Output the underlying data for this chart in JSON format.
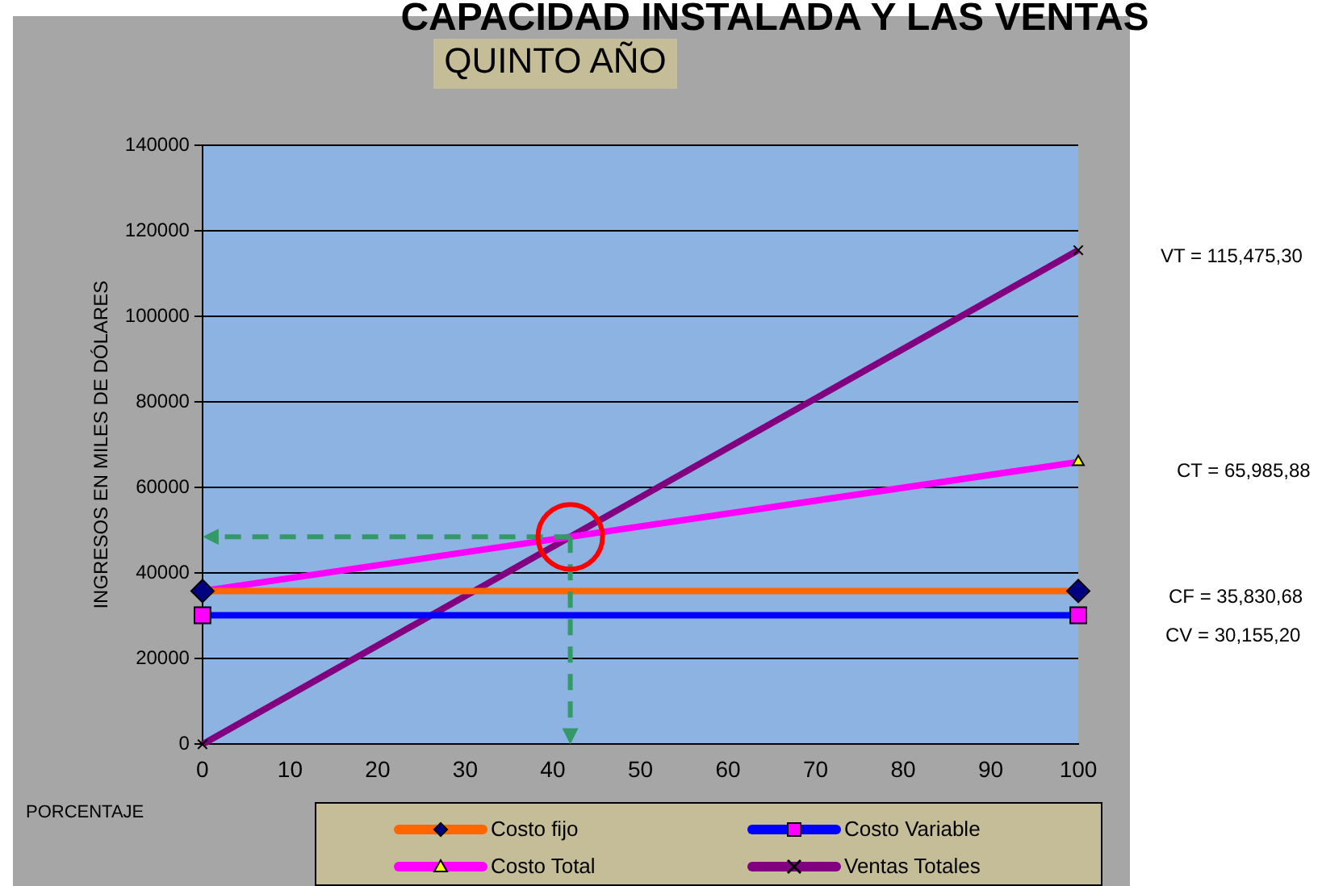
{
  "chart_data": {
    "type": "line",
    "title": "CAPACIDAD INSTALADA Y LAS VENTAS",
    "subtitle": "QUINTO AÑO",
    "xlabel": "PORCENTAJE",
    "ylabel": "INGRESOS EN MILES DE DÓLARES",
    "xlim": [
      0,
      100
    ],
    "xticks": [
      0,
      10,
      20,
      30,
      40,
      50,
      60,
      70,
      80,
      90,
      100
    ],
    "ylim": [
      0,
      140000
    ],
    "yticks": [
      0,
      20000,
      40000,
      60000,
      80000,
      100000,
      120000,
      140000
    ],
    "grid": "y",
    "legend": "bottom",
    "series": [
      {
        "name": "Costo fijo",
        "color": "#ff6600",
        "marker": "diamond",
        "values": [
          35830.68,
          35830.68
        ]
      },
      {
        "name": "Costo Variable",
        "color": "#0000ff",
        "marker": "square",
        "values": [
          30155.2,
          30155.2
        ]
      },
      {
        "name": "Costo Total",
        "color": "#ff00ff",
        "marker": "triangle",
        "values": [
          35830.68,
          65985.88
        ]
      },
      {
        "name": "Ventas Totales",
        "color": "#800080",
        "marker": "cross",
        "values": [
          0,
          115475.3
        ]
      }
    ],
    "x": [
      0,
      100
    ],
    "annotations": [
      "VT = 115,475,30",
      "CT = 65,985,88",
      "CF = 35,830,68",
      "CV = 30,155,20"
    ]
  }
}
